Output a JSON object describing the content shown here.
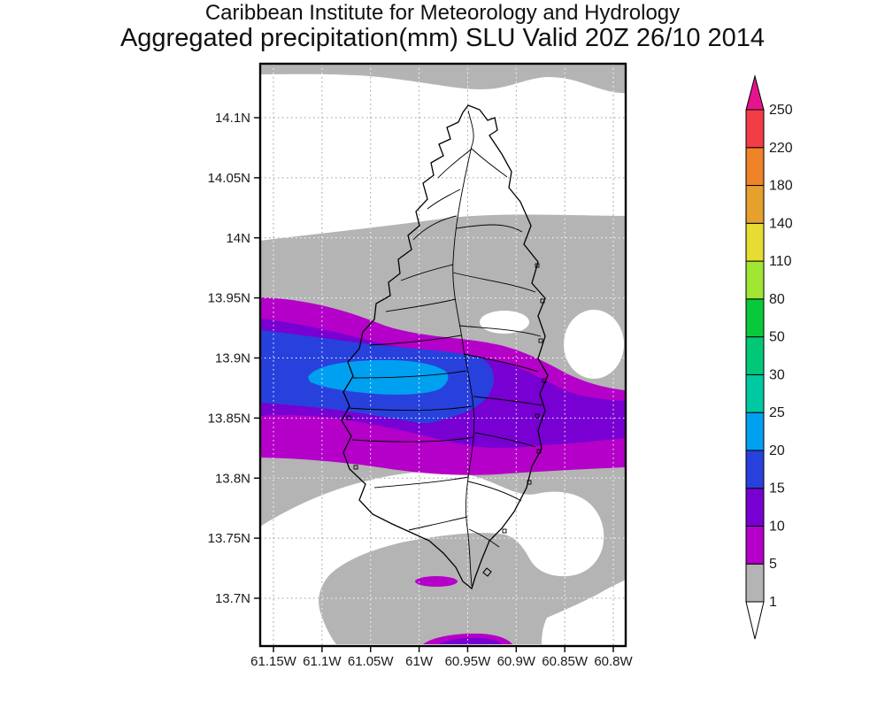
{
  "title": {
    "line1": "Caribbean Institute for Meteorology and Hydrology",
    "line2": "Aggregated precipitation(mm) SLU Valid 20Z 26/10 2014"
  },
  "chart_data": {
    "type": "heatmap",
    "subtype": "filled-contour precipitation map",
    "region": "Saint Lucia (SLU)",
    "field": "Aggregated precipitation",
    "units": "mm",
    "valid_time": "20Z 26/10 2014",
    "source": "Caribbean Institute for Meteorology and Hydrology",
    "x_axis": {
      "tick_labels": [
        "61.15W",
        "61.1W",
        "61.05W",
        "61W",
        "60.95W",
        "60.9W",
        "60.85W",
        "60.8W"
      ],
      "lon_values": [
        61.15,
        61.1,
        61.05,
        61.0,
        60.95,
        60.9,
        60.85,
        60.8
      ],
      "grid": "dotted"
    },
    "y_axis": {
      "tick_labels": [
        "14.1N",
        "14.05N",
        "14N",
        "13.95N",
        "13.9N",
        "13.85N",
        "13.8N",
        "13.75N",
        "13.7N"
      ],
      "lat_values": [
        14.1,
        14.05,
        14.0,
        13.95,
        13.9,
        13.85,
        13.8,
        13.75,
        13.7
      ],
      "grid": "dotted"
    },
    "colorbar": {
      "position": "right",
      "units": "mm",
      "levels": [
        1,
        5,
        10,
        15,
        20,
        25,
        30,
        50,
        80,
        110,
        140,
        180,
        220,
        250
      ],
      "segment_colors_low_to_high": [
        "#b4b4b4",
        "#b400c8",
        "#7800d2",
        "#2841dc",
        "#00a0f0",
        "#00c8a0",
        "#00c878",
        "#0ac83c",
        "#a0e632",
        "#e6dc32",
        "#e6a02c",
        "#f08228",
        "#f23c46"
      ],
      "under_color": "#ffffff",
      "over_color": "#e6148c"
    },
    "contour_features": [
      {
        "value_range_mm": "20-25",
        "color": "#00a0f0",
        "description": "cyan band core, elongated west-east over the west-central island, about 61.08W to 60.97W near 13.885N"
      },
      {
        "value_range_mm": "15-20",
        "color": "#2841dc",
        "description": "blue band around the core, from the west map edge (61.15W) to about 60.93W, 13.86N-13.93N"
      },
      {
        "value_range_mm": "10-15",
        "color": "#7800d2",
        "description": "violet band spanning the full map width near 13.85N-13.95N with a widening lobe east of the island"
      },
      {
        "value_range_mm": "5-10",
        "color": "#b400c8",
        "description": "magenta envelope of the rain band, roughly 13.82N-13.96N across the whole map; small spot near 61.02W 13.715N; small patch at the southern map edge near 60.95W"
      },
      {
        "value_range_mm": "1-5",
        "color": "#b4b4b4",
        "description": "gray light-precipitation areas: strip along the north edge, broad central belt over the mid island, and southern belt near 13.70N-13.73N"
      },
      {
        "value_range_mm": "<1",
        "color": "#ffffff",
        "description": "white dry areas north and south of the band, plus holes east of the island near 60.85W 13.92N"
      }
    ],
    "overlay": "Saint Lucia coastline with interior watershed/basin boundary lines"
  }
}
